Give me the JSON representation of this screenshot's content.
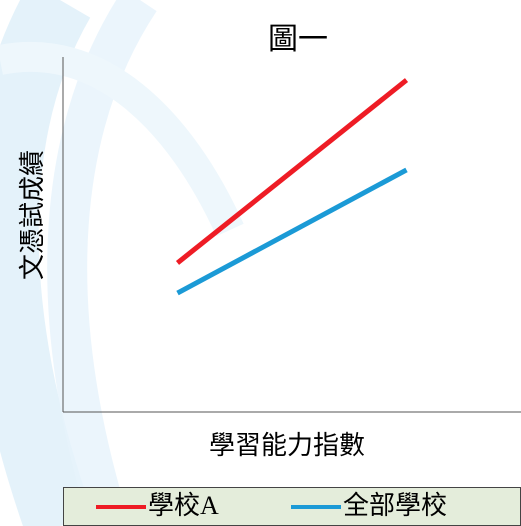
{
  "chart_data": {
    "type": "line",
    "title": "圖一",
    "x_label": "學習能力指數",
    "y_label": "文憑試成績",
    "xlim": [
      0,
      100
    ],
    "ylim": [
      0,
      100
    ],
    "x": [
      25,
      75
    ],
    "series": [
      {
        "name": "學校A",
        "color": "#ee1c25",
        "values": [
          42,
          93.5
        ]
      },
      {
        "name": "全部學校",
        "color": "#1b9ad6",
        "values": [
          33.5,
          68.2
        ]
      }
    ],
    "legend": "bottom"
  }
}
